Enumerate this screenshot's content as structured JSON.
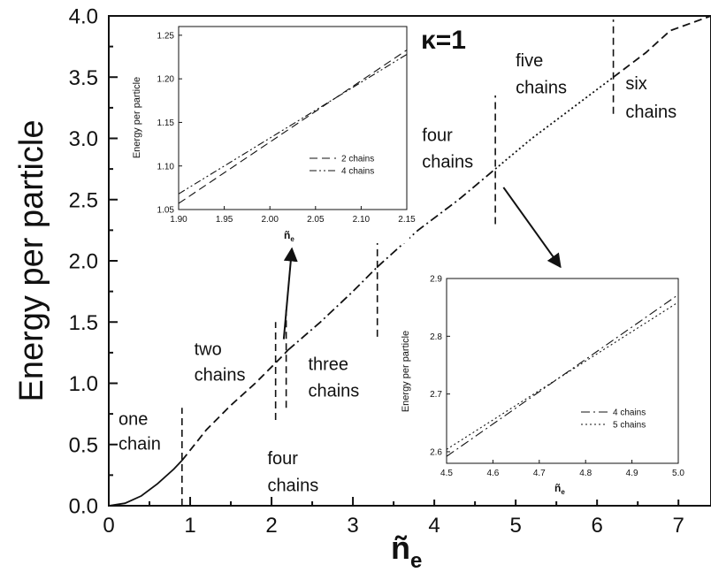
{
  "chart_data": [
    {
      "type": "line",
      "title": "",
      "xlabel": "ñ",
      "xlabel_sub": "e",
      "ylabel": "Energy per particle",
      "xlim": [
        0,
        7.4
      ],
      "ylim": [
        0,
        4.0
      ],
      "xticks": [
        "0",
        "1",
        "2",
        "3",
        "4",
        "5",
        "6",
        "7"
      ],
      "yticks": [
        "0.0",
        "0.5",
        "1.0",
        "1.5",
        "2.0",
        "2.5",
        "3.0",
        "3.5",
        "4.0"
      ],
      "legend_label": "κ=1",
      "series": [
        {
          "x": [
            0,
            0.2,
            0.4,
            0.6,
            0.8,
            0.9
          ],
          "y": [
            0,
            0.02,
            0.08,
            0.18,
            0.3,
            0.37
          ],
          "style": "solid"
        },
        {
          "x": [
            0.9,
            1.2,
            1.5,
            1.8,
            2.1,
            2.2
          ],
          "y": [
            0.37,
            0.62,
            0.82,
            1.0,
            1.2,
            1.27
          ],
          "style": "dashed"
        },
        {
          "x": [
            2.2,
            2.6,
            3.0,
            3.3
          ],
          "y": [
            1.27,
            1.5,
            1.75,
            1.95
          ],
          "style": "dashdot"
        },
        {
          "x": [
            3.3,
            3.8,
            4.3,
            4.75
          ],
          "y": [
            1.95,
            2.25,
            2.5,
            2.75
          ],
          "style": "dashdot"
        },
        {
          "x": [
            4.75,
            5.2,
            5.7,
            6.2
          ],
          "y": [
            2.75,
            3.0,
            3.25,
            3.5
          ],
          "style": "dotted"
        },
        {
          "x": [
            6.2,
            6.6,
            6.9,
            7.4
          ],
          "y": [
            3.5,
            3.7,
            3.88,
            4.0
          ],
          "style": "dashed"
        }
      ],
      "dividers": [
        {
          "x": 0.9,
          "y": [
            0,
            0.8
          ]
        },
        {
          "x": 2.05,
          "y": [
            0.7,
            1.5
          ]
        },
        {
          "x": 2.18,
          "y": [
            0.8,
            1.6
          ]
        },
        {
          "x": 3.3,
          "y": [
            1.38,
            2.5
          ]
        },
        {
          "x": 4.75,
          "y": [
            2.3,
            3.35
          ]
        },
        {
          "x": 6.2,
          "y": [
            3.2,
            3.97
          ]
        }
      ],
      "annotations": [
        {
          "text": "one",
          "x": 0.12,
          "y": 0.66
        },
        {
          "text": "chain",
          "x": 0.12,
          "y": 0.46
        },
        {
          "text": "two",
          "x": 1.05,
          "y": 1.23
        },
        {
          "text": "chains",
          "x": 1.05,
          "y": 1.02
        },
        {
          "text": "three",
          "x": 2.45,
          "y": 1.11
        },
        {
          "text": "chains",
          "x": 2.45,
          "y": 0.89
        },
        {
          "text": "four",
          "x": 1.95,
          "y": 0.34
        },
        {
          "text": "chains",
          "x": 1.95,
          "y": 0.12
        },
        {
          "text": "four",
          "x": 3.85,
          "y": 2.98
        },
        {
          "text": "chains",
          "x": 3.85,
          "y": 2.76
        },
        {
          "text": "five",
          "x": 5.0,
          "y": 3.59
        },
        {
          "text": "chains",
          "x": 5.0,
          "y": 3.37
        },
        {
          "text": "six",
          "x": 6.35,
          "y": 3.4
        },
        {
          "text": "chains",
          "x": 6.35,
          "y": 3.17
        }
      ],
      "arrows": [
        {
          "from": [
            2.15,
            1.36
          ],
          "to": [
            2.25,
            2.1
          ]
        },
        {
          "from": [
            4.85,
            2.6
          ],
          "to": [
            5.55,
            1.95
          ]
        }
      ]
    },
    {
      "type": "line",
      "title": "",
      "xlabel": "ñ",
      "xlabel_sub": "e",
      "ylabel": "Energy per particle",
      "xlim": [
        1.9,
        2.15
      ],
      "ylim": [
        1.05,
        1.26
      ],
      "xticks": [
        "1.90",
        "1.95",
        "2.00",
        "2.05",
        "2.10",
        "2.15"
      ],
      "yticks": [
        "1.05",
        "1.10",
        "1.15",
        "1.20",
        "1.25"
      ],
      "series": [
        {
          "name": "2 chains",
          "x": [
            1.9,
            2.15
          ],
          "y": [
            1.057,
            1.233
          ],
          "style": "dashed"
        },
        {
          "name": "4 chains",
          "x": [
            1.9,
            2.15
          ],
          "y": [
            1.068,
            1.228
          ],
          "style": "dashdotdot"
        }
      ],
      "legend_placement": "bottom-right"
    },
    {
      "type": "line",
      "title": "",
      "xlabel": "ñ",
      "xlabel_sub": "e",
      "ylabel": "Energy per particle",
      "xlim": [
        4.5,
        5.0
      ],
      "ylim": [
        2.58,
        2.9
      ],
      "xticks": [
        "4.5",
        "4.6",
        "4.7",
        "4.8",
        "4.9",
        "5.0"
      ],
      "yticks": [
        "2.6",
        "2.7",
        "2.8",
        "2.9"
      ],
      "series": [
        {
          "name": "4 chains",
          "x": [
            4.5,
            5.0
          ],
          "y": [
            2.592,
            2.872
          ],
          "style": "dashdot"
        },
        {
          "name": "5 chains",
          "x": [
            4.5,
            5.0
          ],
          "y": [
            2.604,
            2.859
          ],
          "style": "dotted"
        }
      ],
      "legend_placement": "bottom-right"
    }
  ]
}
